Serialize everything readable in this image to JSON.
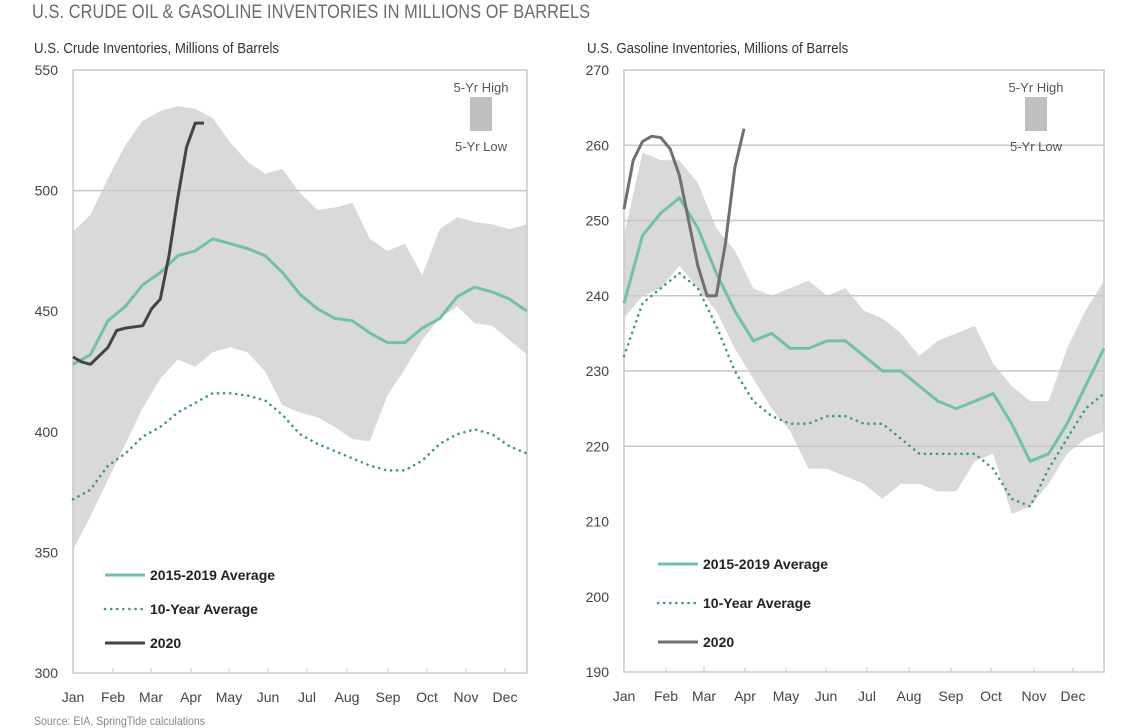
{
  "title": "U.S. CRUDE OIL & GASOLINE INVENTORIES IN MILLIONS OF BARRELS",
  "source": "Source: EIA, SpringTide calculations",
  "colors": {
    "avg5": "#6cc4a0",
    "avg10": "#3e9a7c",
    "y2020_crude": "#444444",
    "y2020_gas": "#707070",
    "band": "#d9d9d9",
    "band_legend": "#bfbfbf",
    "grid": "#c8c8c8"
  },
  "chart_data": [
    {
      "type": "area",
      "title": "U.S. Crude Inventories, Millions of Barrels",
      "xlabel": "",
      "ylabel": "",
      "ylim": [
        300,
        550
      ],
      "yticks": [
        300,
        350,
        400,
        450,
        500,
        550
      ],
      "grid": "horizontal at 500",
      "xticks": [
        "Jan",
        "Feb",
        "Mar",
        "Apr",
        "May",
        "Jun",
        "Jul",
        "Aug",
        "Sep",
        "Oct",
        "Nov",
        "Dec"
      ],
      "x_weeks": [
        0,
        2,
        4,
        6,
        8,
        10,
        12,
        14,
        16,
        18,
        20,
        22,
        24,
        26,
        28,
        30,
        32,
        34,
        36,
        38,
        40,
        42,
        44,
        46,
        48,
        50,
        52
      ],
      "band": {
        "high": [
          483,
          490,
          505,
          519,
          529,
          533,
          535,
          534,
          530,
          520,
          512,
          507,
          509,
          499,
          492,
          493,
          495,
          480,
          475,
          478,
          465,
          484,
          489,
          487,
          486,
          484,
          486
        ],
        "low": [
          351,
          365,
          380,
          395,
          410,
          422,
          430,
          427,
          433,
          435,
          433,
          425,
          411,
          408,
          406,
          402,
          397,
          396,
          415,
          426,
          438,
          447,
          452,
          445,
          444,
          438,
          432
        ]
      },
      "series": [
        {
          "name": "2015-2019 Average",
          "style": "solid",
          "values": [
            428,
            432,
            446,
            452,
            461,
            466,
            473,
            475,
            480,
            478,
            476,
            473,
            466,
            457,
            451,
            447,
            446,
            441,
            437,
            437,
            443,
            447,
            456,
            460,
            458,
            455,
            450
          ]
        },
        {
          "name": "10-Year Average",
          "style": "dotted",
          "values": [
            372,
            376,
            386,
            391,
            398,
            402,
            408,
            412,
            416,
            416,
            415,
            413,
            407,
            399,
            395,
            392,
            389,
            386,
            384,
            384,
            388,
            395,
            399,
            401,
            399,
            394,
            391
          ]
        },
        {
          "name": "2020",
          "style": "solid",
          "x_weeks": [
            0,
            1,
            2,
            4,
            5,
            6,
            8,
            9,
            10,
            11,
            12,
            13,
            14,
            15
          ],
          "values": [
            431,
            429,
            428,
            435,
            442,
            443,
            444,
            451,
            455,
            473,
            497,
            518,
            528,
            528
          ]
        }
      ],
      "legend": {
        "entries": [
          "2015-2019 Average",
          "10-Year Average",
          "2020"
        ],
        "placement": "bottom-left"
      },
      "band_legend": {
        "high": "5-Yr High",
        "low": "5-Yr Low",
        "placement": "top-right"
      }
    },
    {
      "type": "area",
      "title": "U.S. Gasoline Inventories, Millions of Barrels",
      "xlabel": "",
      "ylabel": "",
      "ylim": [
        190,
        270
      ],
      "yticks": [
        190,
        200,
        210,
        220,
        230,
        240,
        250,
        260,
        270
      ],
      "grid": "horizontal lines at 220-260",
      "xticks": [
        "Jan",
        "Feb",
        "Mar",
        "Apr",
        "May",
        "Jun",
        "Jul",
        "Aug",
        "Sep",
        "Oct",
        "Nov",
        "Dec"
      ],
      "x_weeks": [
        0,
        2,
        4,
        6,
        8,
        10,
        12,
        14,
        16,
        18,
        20,
        22,
        24,
        26,
        28,
        30,
        32,
        34,
        36,
        38,
        40,
        42,
        44,
        46,
        48,
        50,
        52
      ],
      "band": {
        "high": [
          248,
          259,
          258,
          258,
          255,
          249,
          246,
          241,
          240,
          241,
          242,
          240,
          241,
          238,
          237,
          235,
          232,
          234,
          235,
          236,
          231,
          228,
          226,
          226,
          233,
          238,
          242
        ],
        "low": [
          237,
          240,
          241,
          244,
          241,
          238,
          233,
          229,
          225,
          222,
          217,
          217,
          216,
          215,
          213,
          215,
          215,
          214,
          214,
          218,
          219,
          211,
          212,
          215,
          219,
          221,
          222
        ],
        "note": "band low dips near 226 around Apr before dropping"
      },
      "series": [
        {
          "name": "2015-2019 Average",
          "style": "solid",
          "values": [
            239,
            248,
            251,
            253,
            249,
            243,
            238,
            234,
            235,
            233,
            233,
            234,
            234,
            232,
            230,
            230,
            228,
            226,
            225,
            226,
            227,
            223,
            218,
            219,
            223,
            228,
            233
          ]
        },
        {
          "name": "10-Year Average",
          "style": "dotted",
          "values": [
            232,
            239,
            241,
            243,
            241,
            236,
            230,
            226,
            224,
            223,
            223,
            224,
            224,
            223,
            223,
            221,
            219,
            219,
            219,
            219,
            217,
            213,
            212,
            217,
            221,
            225,
            227
          ]
        },
        {
          "name": "2020",
          "style": "solid",
          "x_weeks": [
            0,
            1,
            2,
            3,
            4,
            5,
            6,
            7,
            8,
            9,
            10,
            11,
            12,
            13
          ],
          "values": [
            251.5,
            258,
            260.5,
            261.2,
            261,
            259.5,
            256,
            250,
            244,
            240,
            240,
            247,
            257,
            262.2
          ]
        }
      ],
      "legend": {
        "entries": [
          "2015-2019 Average",
          "10-Year Average",
          "2020"
        ],
        "placement": "bottom-left"
      },
      "band_legend": {
        "high": "5-Yr High",
        "low": "5-Yr Low",
        "placement": "top-right"
      }
    }
  ]
}
